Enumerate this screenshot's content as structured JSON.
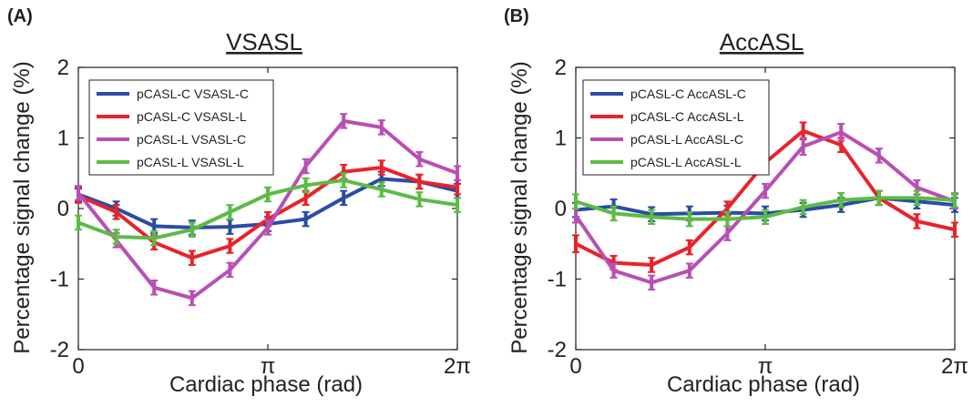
{
  "chart_data": [
    {
      "type": "line",
      "panel_label": "(A)",
      "title": "VSASL",
      "xlabel": "Cardiac phase (rad)",
      "ylabel": "Percentage signal change (%)",
      "ylim": [
        -2,
        2
      ],
      "xlim": [
        0,
        10
      ],
      "yticks": [
        2,
        1,
        0,
        -1,
        -2
      ],
      "yticklabels": [
        "2",
        "1",
        "0",
        "-1",
        "-2"
      ],
      "xtick_labels": [
        "0",
        "π",
        "2π"
      ],
      "x": [
        0,
        1,
        2,
        3,
        4,
        5,
        6,
        7,
        8,
        9,
        10
      ],
      "grid": false,
      "legend_position": "top-left",
      "series": [
        {
          "name": "pCASL-C VSASL-C",
          "color": "#2b4ca3",
          "values": [
            0.2,
            0.0,
            -0.25,
            -0.27,
            -0.26,
            -0.22,
            -0.15,
            0.15,
            0.42,
            0.38,
            0.25
          ],
          "errors": [
            0.1,
            0.1,
            0.1,
            0.1,
            0.1,
            0.1,
            0.1,
            0.1,
            0.1,
            0.1,
            0.1
          ]
        },
        {
          "name": "pCASL-C VSASL-L",
          "color": "#e8232a",
          "values": [
            0.18,
            -0.05,
            -0.48,
            -0.7,
            -0.53,
            -0.15,
            0.15,
            0.52,
            0.58,
            0.38,
            0.3
          ],
          "errors": [
            0.1,
            0.1,
            0.1,
            0.1,
            0.1,
            0.1,
            0.1,
            0.1,
            0.1,
            0.1,
            0.1
          ]
        },
        {
          "name": "pCASL-L VSASL-C",
          "color": "#b84fb5",
          "values": [
            0.22,
            -0.45,
            -1.12,
            -1.27,
            -0.87,
            -0.27,
            0.6,
            1.24,
            1.15,
            0.7,
            0.5
          ],
          "errors": [
            0.1,
            0.1,
            0.1,
            0.1,
            0.1,
            0.1,
            0.1,
            0.1,
            0.1,
            0.1,
            0.1
          ]
        },
        {
          "name": "pCASL-L VSASL-L",
          "color": "#5cbb45",
          "values": [
            -0.2,
            -0.4,
            -0.42,
            -0.3,
            -0.05,
            0.2,
            0.33,
            0.4,
            0.27,
            0.13,
            0.05
          ],
          "errors": [
            0.1,
            0.1,
            0.1,
            0.1,
            0.1,
            0.1,
            0.1,
            0.1,
            0.1,
            0.1,
            0.1
          ]
        }
      ]
    },
    {
      "type": "line",
      "panel_label": "(B)",
      "title": "AccASL",
      "xlabel": "Cardiac phase (rad)",
      "ylabel": "Percentage signal change (%)",
      "ylim": [
        -2,
        2
      ],
      "xlim": [
        0,
        10
      ],
      "yticks": [
        2,
        1,
        0,
        -1,
        -2
      ],
      "yticklabels": [
        "2",
        "1",
        "0",
        "-1",
        "-2"
      ],
      "xtick_labels": [
        "0",
        "π",
        "2π"
      ],
      "x": [
        0,
        1,
        2,
        3,
        4,
        5,
        6,
        7,
        8,
        9,
        10
      ],
      "grid": false,
      "legend_position": "top-left",
      "series": [
        {
          "name": "pCASL-C AccASL-C",
          "color": "#2b4ca3",
          "values": [
            -0.02,
            0.03,
            -0.08,
            -0.07,
            -0.06,
            -0.07,
            -0.02,
            0.05,
            0.15,
            0.1,
            0.05
          ],
          "errors": [
            0.1,
            0.1,
            0.1,
            0.1,
            0.1,
            0.1,
            0.1,
            0.1,
            0.1,
            0.1,
            0.1
          ]
        },
        {
          "name": "pCASL-C AccASL-L",
          "color": "#e8232a",
          "values": [
            -0.5,
            -0.77,
            -0.8,
            -0.55,
            0.0,
            0.65,
            1.1,
            0.9,
            0.15,
            -0.18,
            -0.3
          ],
          "errors": [
            0.12,
            0.1,
            0.1,
            0.1,
            0.1,
            0.12,
            0.12,
            0.1,
            0.1,
            0.1,
            0.1
          ]
        },
        {
          "name": "pCASL-L AccASL-C",
          "color": "#b84fb5",
          "values": [
            -0.1,
            -0.88,
            -1.05,
            -0.88,
            -0.35,
            0.25,
            0.88,
            1.08,
            0.75,
            0.3,
            0.1
          ],
          "errors": [
            0.1,
            0.1,
            0.1,
            0.1,
            0.1,
            0.1,
            0.12,
            0.12,
            0.1,
            0.1,
            0.1
          ]
        },
        {
          "name": "pCASL-L AccASL-L",
          "color": "#5cbb45",
          "values": [
            0.1,
            -0.07,
            -0.12,
            -0.15,
            -0.15,
            -0.12,
            0.02,
            0.12,
            0.15,
            0.15,
            0.12
          ],
          "errors": [
            0.1,
            0.1,
            0.1,
            0.1,
            0.1,
            0.1,
            0.1,
            0.1,
            0.1,
            0.1,
            0.1
          ]
        }
      ]
    }
  ]
}
